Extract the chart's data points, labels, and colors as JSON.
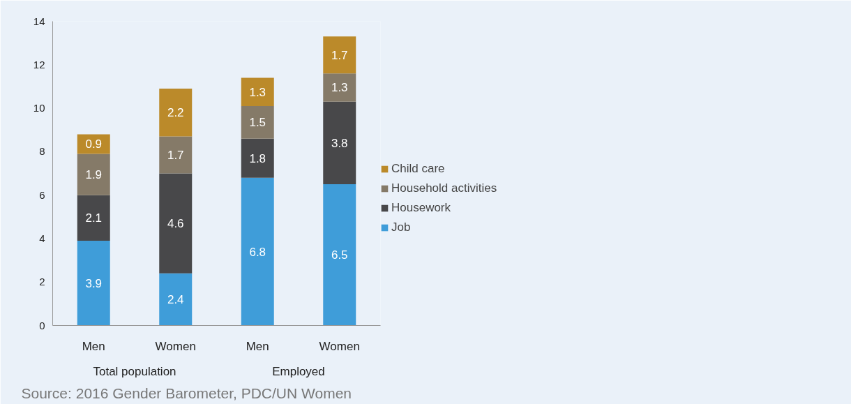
{
  "chart_data": {
    "type": "bar",
    "stacked": true,
    "categories": [
      "Men",
      "Women",
      "Men",
      "Women"
    ],
    "annotations": [
      "Total population",
      "Employed",
      "Source: 2016 Gender Barometer, PDC/UN Women"
    ],
    "series": [
      {
        "name": "Job",
        "color": "#3f9dd9",
        "values": [
          3.9,
          2.4,
          6.8,
          6.5
        ]
      },
      {
        "name": "Housework",
        "color": "#48484a",
        "values": [
          2.1,
          4.6,
          1.8,
          3.8
        ]
      },
      {
        "name": "Household activities",
        "color": "#857a68",
        "values": [
          1.9,
          1.7,
          1.5,
          1.3
        ]
      },
      {
        "name": "Child care",
        "color": "#bb8a2a",
        "values": [
          0.9,
          2.2,
          1.3,
          1.7
        ]
      }
    ],
    "ylim": [
      0,
      14
    ],
    "yticks": [
      0,
      2,
      4,
      6,
      8,
      10,
      12,
      14
    ],
    "data_labels": true,
    "legend": "right",
    "grid": false
  }
}
